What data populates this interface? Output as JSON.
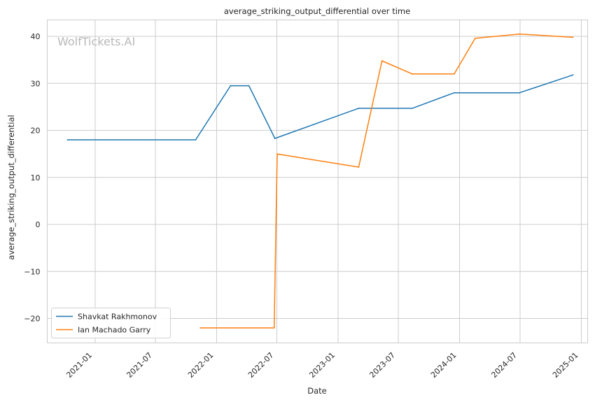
{
  "chart_data": {
    "type": "line",
    "title": "average_striking_output_differential over time",
    "xlabel": "Date",
    "ylabel": "average_striking_output_differential",
    "watermark": "WolfTickets.AI",
    "x_ticks": [
      "2021-01",
      "2021-07",
      "2022-01",
      "2022-07",
      "2023-01",
      "2023-07",
      "2024-01",
      "2024-07",
      "2025-01"
    ],
    "y_ticks": [
      -20,
      -10,
      0,
      10,
      20,
      30,
      40
    ],
    "xlim": [
      "2020-08-10",
      "2025-01-20"
    ],
    "ylim": [
      -25.2,
      43.5
    ],
    "grid": true,
    "legend_position": "lower-left",
    "series": [
      {
        "name": "Shavkat Rakhmonov",
        "color": "#1f77b4",
        "points": [
          {
            "date": "2020-10-10",
            "value": 18.0
          },
          {
            "date": "2021-10-30",
            "value": 18.0
          },
          {
            "date": "2022-02-12",
            "value": 29.5
          },
          {
            "date": "2022-04-08",
            "value": 29.5
          },
          {
            "date": "2022-06-25",
            "value": 18.3
          },
          {
            "date": "2023-03-04",
            "value": 24.7
          },
          {
            "date": "2023-08-12",
            "value": 24.7
          },
          {
            "date": "2023-12-16",
            "value": 28.0
          },
          {
            "date": "2024-06-29",
            "value": 28.0
          },
          {
            "date": "2024-12-07",
            "value": 31.8
          }
        ]
      },
      {
        "name": "Ian Machado Garry",
        "color": "#ff7f0e",
        "points": [
          {
            "date": "2021-11-13",
            "value": -22.0
          },
          {
            "date": "2022-06-23",
            "value": -22.0
          },
          {
            "date": "2022-07-02",
            "value": 15.0
          },
          {
            "date": "2023-03-04",
            "value": 12.2
          },
          {
            "date": "2023-05-13",
            "value": 34.8
          },
          {
            "date": "2023-08-12",
            "value": 32.0
          },
          {
            "date": "2023-12-16",
            "value": 32.0
          },
          {
            "date": "2024-02-17",
            "value": 39.6
          },
          {
            "date": "2024-06-29",
            "value": 40.5
          },
          {
            "date": "2024-12-07",
            "value": 39.8
          }
        ]
      }
    ]
  }
}
